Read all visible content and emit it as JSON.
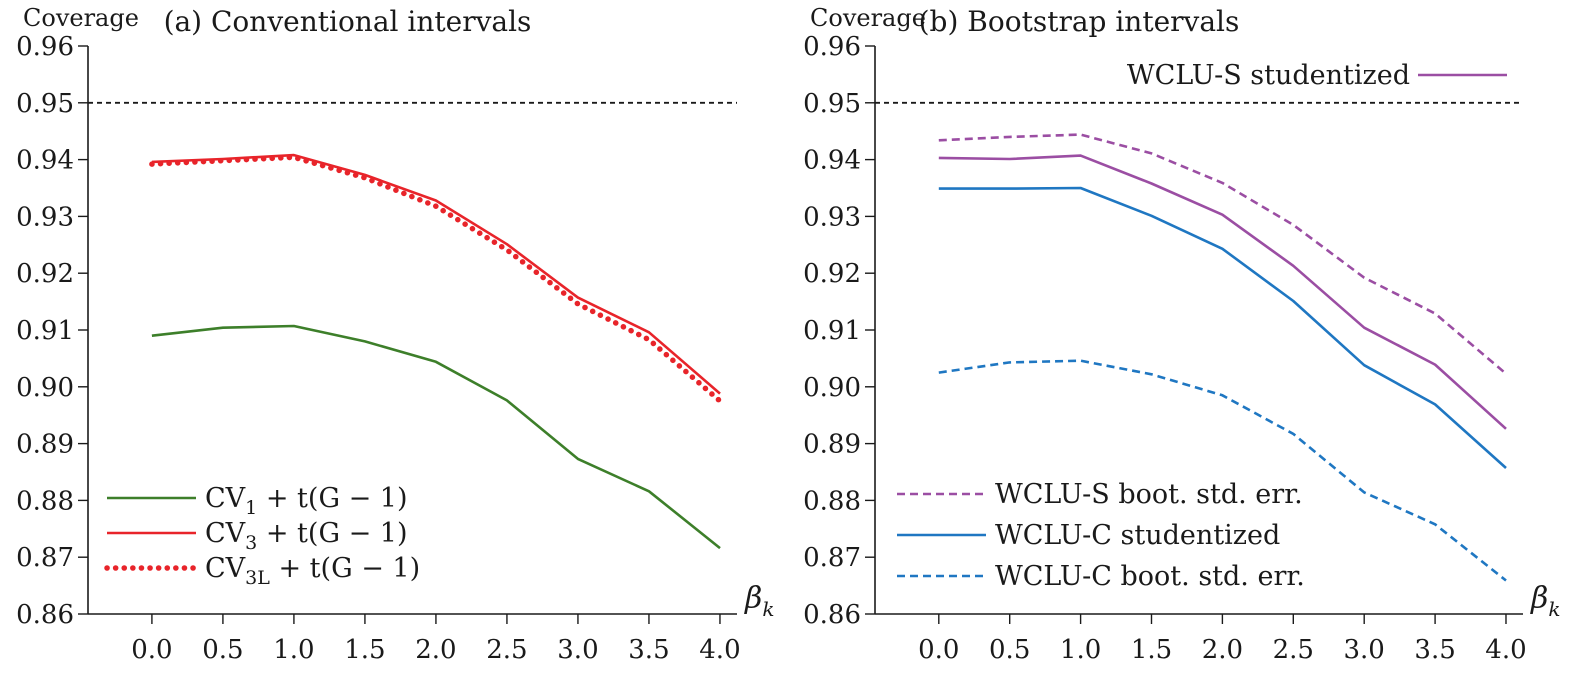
{
  "colors": {
    "green": "#3d7f2a",
    "red": "#e8242a",
    "purple": "#9b4ea3",
    "blue": "#1f77c2",
    "axis": "#1a1a1a"
  },
  "chart_data": [
    {
      "type": "line",
      "title": "(a) Conventional intervals",
      "ylabel": "Coverage",
      "xlabel": "βk",
      "xlabel_main": "β",
      "xlabel_sub": "k",
      "x": [
        0.0,
        0.5,
        1.0,
        1.5,
        2.0,
        2.5,
        3.0,
        3.5,
        4.0
      ],
      "xtick_labels": [
        "0.0",
        "0.5",
        "1.0",
        "1.5",
        "2.0",
        "2.5",
        "3.0",
        "3.5",
        "4.0"
      ],
      "yticks": [
        0.86,
        0.87,
        0.88,
        0.89,
        0.9,
        0.91,
        0.92,
        0.93,
        0.94,
        0.95,
        0.96
      ],
      "ytick_labels": [
        "0.86",
        "0.87",
        "0.88",
        "0.89",
        "0.90",
        "0.91",
        "0.92",
        "0.93",
        "0.94",
        "0.95",
        "0.96"
      ],
      "ylim": [
        0.86,
        0.96
      ],
      "xlim": [
        -0.45,
        4.12
      ],
      "reference_line": 0.95,
      "legend_position": "bottom-left",
      "series": [
        {
          "name": "CV1 + t(G − 1)",
          "label_main": "CV",
          "label_sub": "1",
          "label_rest": " + t(G − 1)",
          "color": "#3d7f2a",
          "style": "solid",
          "values": [
            0.909,
            0.9104,
            0.9107,
            0.908,
            0.9044,
            0.8976,
            0.8873,
            0.8816,
            0.8716
          ]
        },
        {
          "name": "CV3 + t(G − 1)",
          "label_main": "CV",
          "label_sub": "3",
          "label_rest": " + t(G − 1)",
          "color": "#e8242a",
          "style": "solid",
          "values": [
            0.9396,
            0.9401,
            0.9408,
            0.9373,
            0.9328,
            0.9251,
            0.9157,
            0.9096,
            0.8988
          ]
        },
        {
          "name": "CV3L + t(G − 1)",
          "label_main": "CV",
          "label_sub": "3L",
          "label_rest": " + t(G − 1)",
          "color": "#e8242a",
          "style": "dotted",
          "values": [
            0.9392,
            0.9398,
            0.9404,
            0.9368,
            0.9318,
            0.9241,
            0.9146,
            0.9083,
            0.8975
          ]
        }
      ]
    },
    {
      "type": "line",
      "title": "(b) Bootstrap intervals",
      "ylabel": "Coverage",
      "xlabel": "βk",
      "xlabel_main": "β",
      "xlabel_sub": "k",
      "x": [
        0.0,
        0.5,
        1.0,
        1.5,
        2.0,
        2.5,
        3.0,
        3.5,
        4.0
      ],
      "xtick_labels": [
        "0.0",
        "0.5",
        "1.0",
        "1.5",
        "2.0",
        "2.5",
        "3.0",
        "3.5",
        "4.0"
      ],
      "yticks": [
        0.86,
        0.87,
        0.88,
        0.89,
        0.9,
        0.91,
        0.92,
        0.93,
        0.94,
        0.95,
        0.96
      ],
      "ytick_labels": [
        "0.86",
        "0.87",
        "0.88",
        "0.89",
        "0.90",
        "0.91",
        "0.92",
        "0.93",
        "0.94",
        "0.95",
        "0.96"
      ],
      "ylim": [
        0.86,
        0.96
      ],
      "xlim": [
        -0.45,
        4.12
      ],
      "reference_line": 0.95,
      "legend_position": "top-right and bottom-left",
      "series": [
        {
          "name": "WCLU-S studentized",
          "color": "#9b4ea3",
          "style": "solid",
          "legend_group": "top",
          "values": [
            0.9403,
            0.9401,
            0.9407,
            0.9358,
            0.9303,
            0.9213,
            0.9104,
            0.9039,
            0.8926
          ]
        },
        {
          "name": "WCLU-S boot. std. err.",
          "color": "#9b4ea3",
          "style": "dashed",
          "legend_group": "bottom",
          "values": [
            0.9434,
            0.944,
            0.9444,
            0.9411,
            0.9359,
            0.9285,
            0.9192,
            0.9129,
            0.9023
          ]
        },
        {
          "name": "WCLU-C studentized",
          "color": "#1f77c2",
          "style": "solid",
          "legend_group": "bottom",
          "values": [
            0.9349,
            0.9349,
            0.935,
            0.9301,
            0.9243,
            0.9151,
            0.9038,
            0.8969,
            0.8857
          ]
        },
        {
          "name": "WCLU-C boot. std. err.",
          "color": "#1f77c2",
          "style": "dashed",
          "legend_group": "bottom",
          "values": [
            0.9025,
            0.9043,
            0.9046,
            0.9022,
            0.8985,
            0.8917,
            0.8814,
            0.8758,
            0.8659
          ]
        }
      ]
    }
  ]
}
